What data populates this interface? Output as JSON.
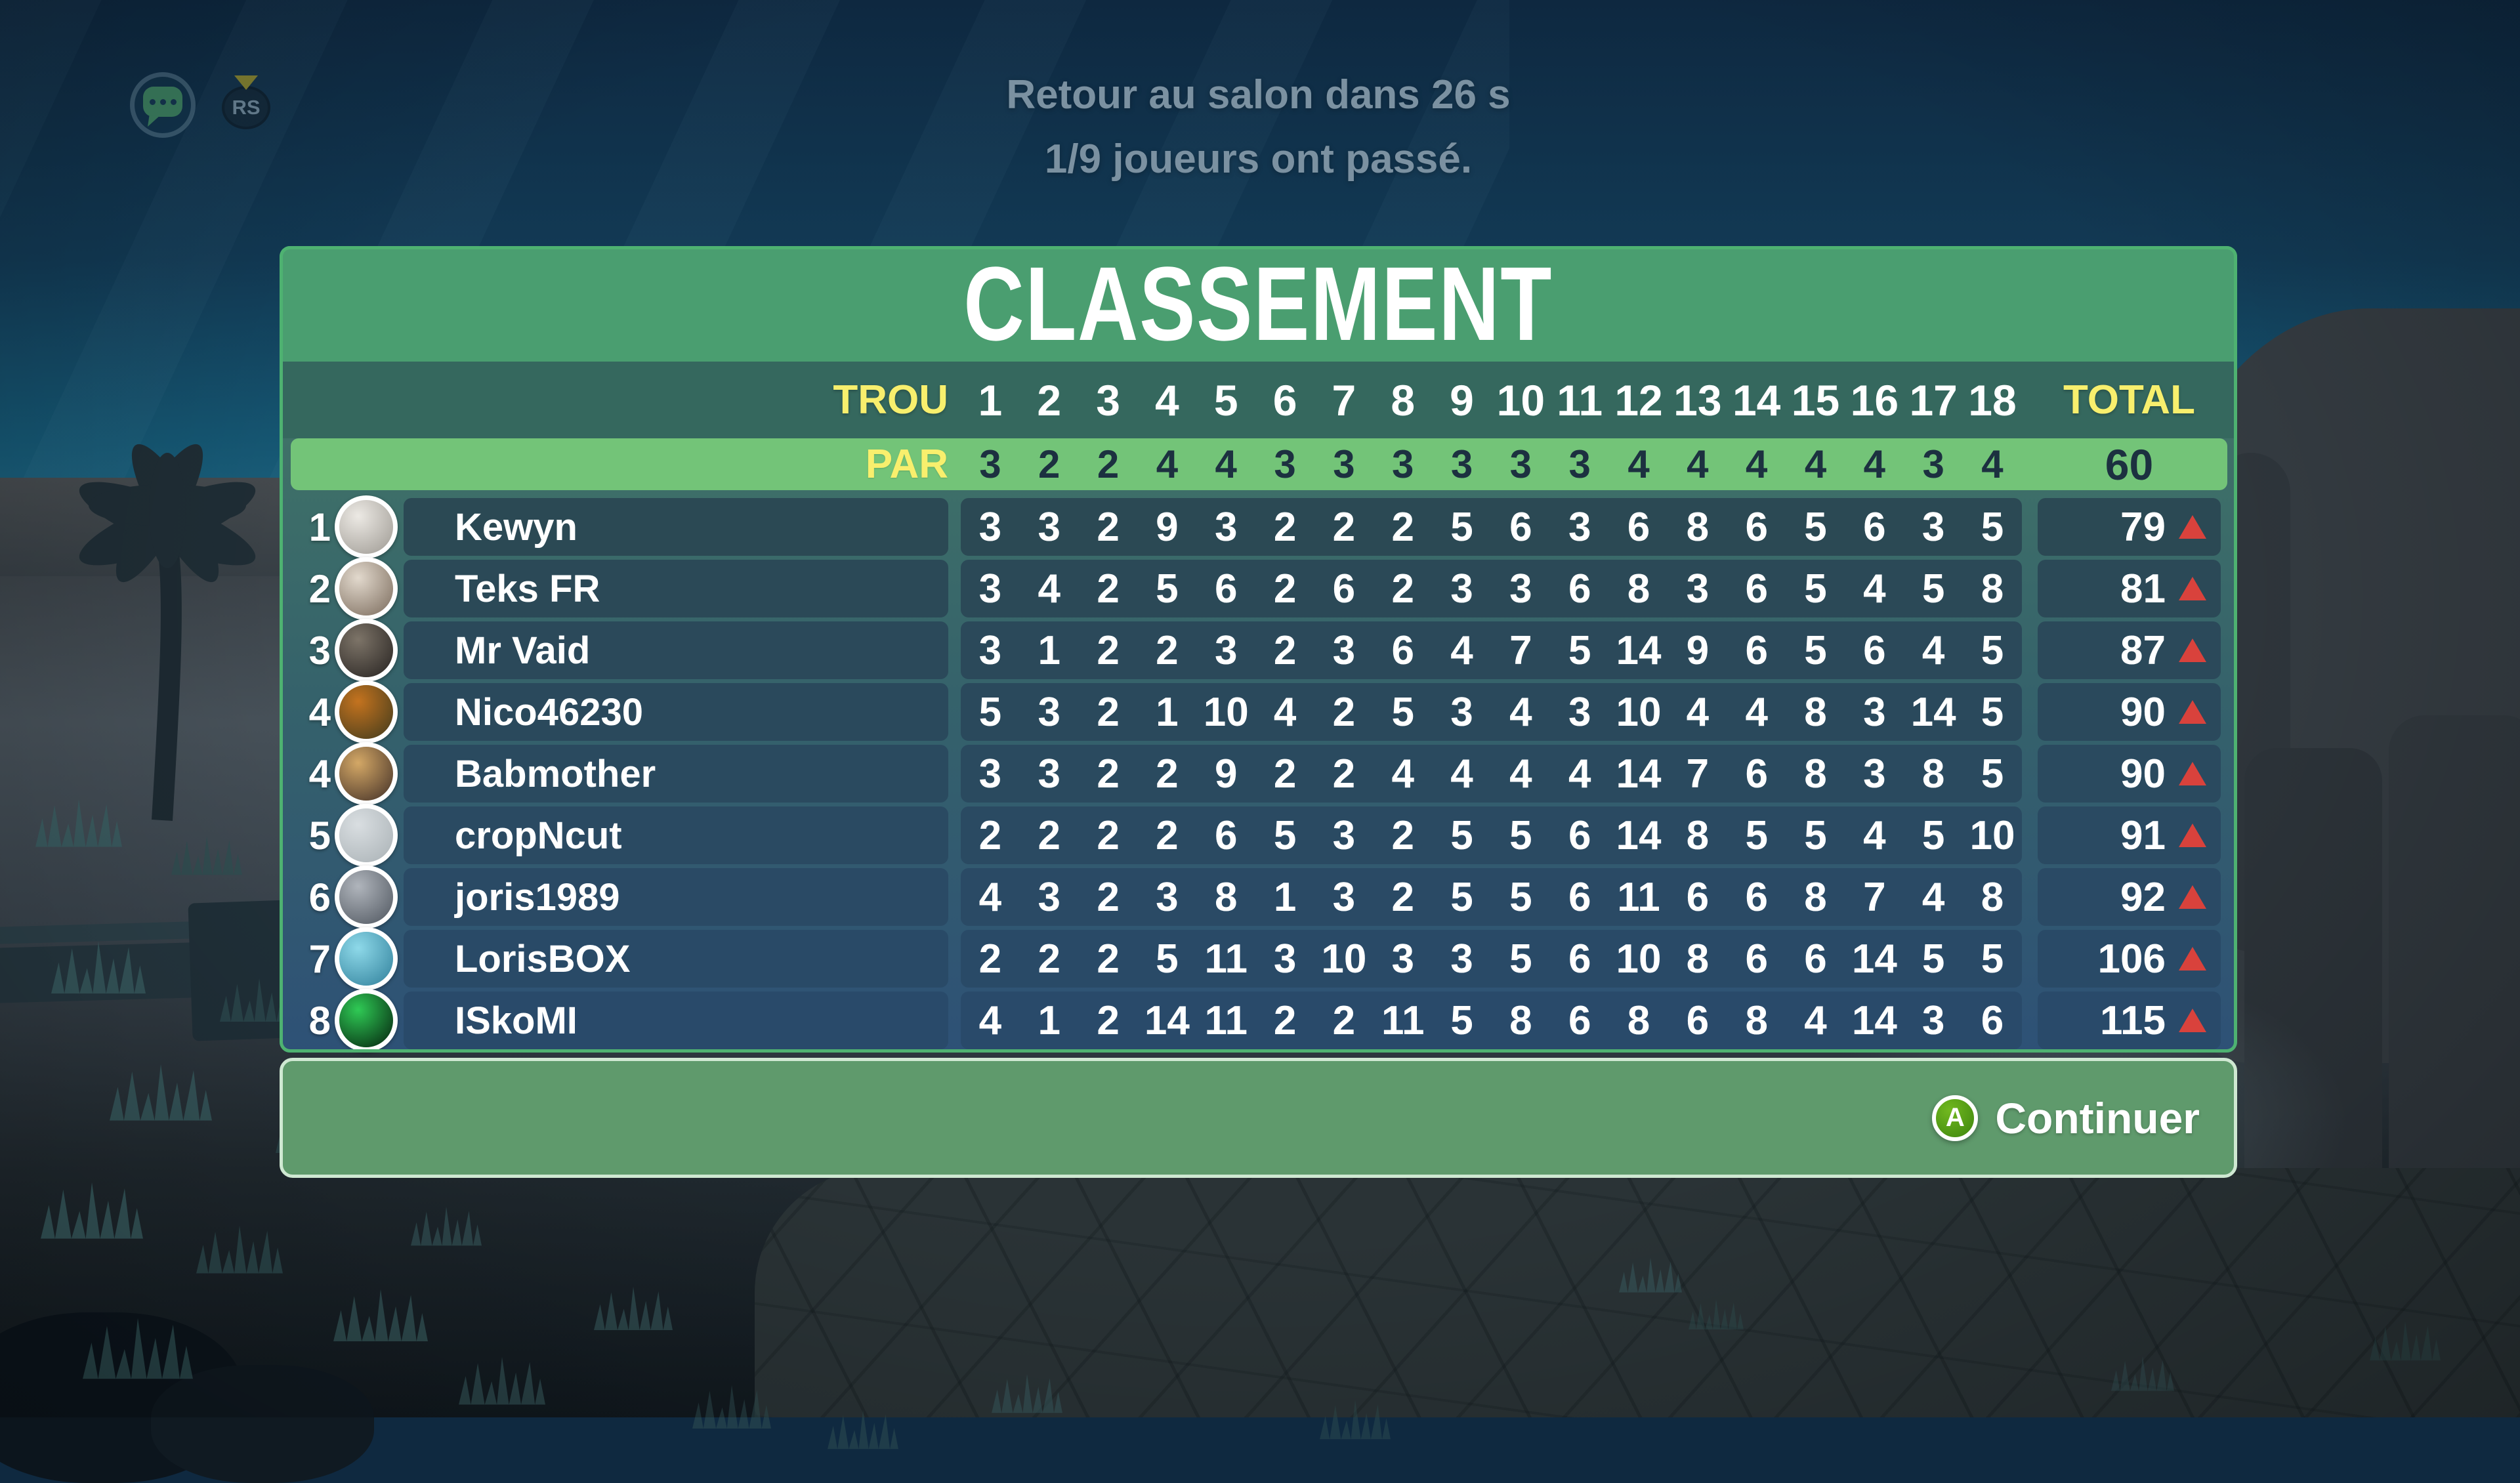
{
  "hud": {
    "timer_text": "Retour au salon dans 26 s",
    "players_passed_text": "1/9 joueurs ont passé.",
    "rs_button_label": "RS"
  },
  "leaderboard": {
    "title": "CLASSEMENT",
    "hole_label": "TROU",
    "par_label": "PAR",
    "total_label": "TOTAL",
    "holes": [
      "1",
      "2",
      "3",
      "4",
      "5",
      "6",
      "7",
      "8",
      "9",
      "10",
      "11",
      "12",
      "13",
      "14",
      "15",
      "16",
      "17",
      "18"
    ],
    "par": [
      3,
      2,
      2,
      4,
      4,
      3,
      3,
      3,
      3,
      3,
      3,
      4,
      4,
      4,
      4,
      4,
      3,
      4
    ],
    "par_total": "60",
    "rows": [
      {
        "rank": "1",
        "name": "Kewyn",
        "scores": [
          3,
          3,
          2,
          9,
          3,
          2,
          2,
          2,
          5,
          6,
          3,
          6,
          8,
          6,
          5,
          6,
          3,
          5
        ],
        "total": "79",
        "trend": "up",
        "avatar_colors": [
          "#ece9e4",
          "#9d9992"
        ]
      },
      {
        "rank": "2",
        "name": "Teks FR",
        "scores": [
          3,
          4,
          2,
          5,
          6,
          2,
          6,
          2,
          3,
          3,
          6,
          8,
          3,
          6,
          5,
          4,
          5,
          8
        ],
        "total": "81",
        "trend": "up",
        "avatar_colors": [
          "#e2d9cd",
          "#7a6a5b"
        ]
      },
      {
        "rank": "3",
        "name": "Mr Vaid",
        "scores": [
          3,
          1,
          2,
          2,
          3,
          2,
          3,
          6,
          4,
          7,
          5,
          14,
          9,
          6,
          5,
          6,
          4,
          5
        ],
        "total": "87",
        "trend": "up",
        "avatar_colors": [
          "#7d7468",
          "#262220"
        ]
      },
      {
        "rank": "4",
        "name": "Nico46230",
        "scores": [
          5,
          3,
          2,
          1,
          10,
          4,
          2,
          5,
          3,
          4,
          3,
          10,
          4,
          4,
          8,
          3,
          14,
          5
        ],
        "total": "90",
        "trend": "up",
        "avatar_colors": [
          "#c4731f",
          "#3f3a1c"
        ]
      },
      {
        "rank": "4",
        "name": "Babmother",
        "scores": [
          3,
          3,
          2,
          2,
          9,
          2,
          2,
          4,
          4,
          4,
          4,
          14,
          7,
          6,
          8,
          3,
          8,
          5
        ],
        "total": "90",
        "trend": "up",
        "avatar_colors": [
          "#d4a866",
          "#402e26"
        ]
      },
      {
        "rank": "5",
        "name": "cropNcut",
        "scores": [
          2,
          2,
          2,
          2,
          6,
          5,
          3,
          2,
          5,
          5,
          6,
          14,
          8,
          5,
          5,
          4,
          5,
          10
        ],
        "total": "91",
        "trend": "up",
        "avatar_colors": [
          "#d9dee1",
          "#a9b1b5"
        ]
      },
      {
        "rank": "6",
        "name": "joris1989",
        "scores": [
          4,
          3,
          2,
          3,
          8,
          1,
          3,
          2,
          5,
          5,
          6,
          11,
          6,
          6,
          8,
          7,
          4,
          8
        ],
        "total": "92",
        "trend": "up",
        "avatar_colors": [
          "#b0b5bc",
          "#4e555e"
        ]
      },
      {
        "rank": "7",
        "name": "LorisBOX",
        "scores": [
          2,
          2,
          2,
          5,
          11,
          3,
          10,
          3,
          3,
          5,
          6,
          10,
          8,
          6,
          6,
          14,
          5,
          5
        ],
        "total": "106",
        "trend": "up",
        "avatar_colors": [
          "#8ed9e9",
          "#2f7f9a"
        ]
      },
      {
        "rank": "8",
        "name": "ISkoMI",
        "scores": [
          4,
          1,
          2,
          14,
          11,
          2,
          2,
          11,
          5,
          8,
          6,
          8,
          6,
          8,
          4,
          14,
          3,
          6
        ],
        "total": "115",
        "trend": "up",
        "avatar_colors": [
          "#2fca55",
          "#041f0d"
        ]
      }
    ]
  },
  "footer": {
    "button_glyph": "A",
    "continue_label": "Continuer"
  },
  "colors": {
    "panel_green": "#4a9e70",
    "panel_border_green": "#4eb271",
    "header_teal": "#35685e",
    "par_green": "#73c478",
    "par_text_dark": "#1c3040",
    "label_yellow": "#f8ef6d",
    "row_pill_top": "#2b4954",
    "row_pill_bottom": "#294a6a",
    "triangle_red": "#d9423c",
    "footer_green": "#5f9a6c",
    "footer_border": "#cfe8d2",
    "a_button_green": "#4e9a14",
    "hud_text": "#7b91a1"
  }
}
